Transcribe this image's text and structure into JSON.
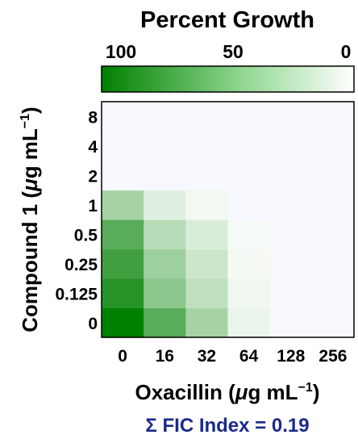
{
  "chart_data": {
    "type": "heatmap",
    "colorbar": {
      "title": "Percent Growth",
      "tick_labels": [
        "100",
        "50",
        "0"
      ],
      "tick_values": [
        100,
        50,
        0
      ],
      "colors": {
        "high": "#008000",
        "low": "#ffffff"
      }
    },
    "xlabel_prefix": "Oxacillin (",
    "xlabel_mu": "μ",
    "xlabel_units": "g mL",
    "xlabel_sup": "−1",
    "xlabel_suffix": ")",
    "ylabel_prefix": "Compound 1 (",
    "ylabel_mu": "μ",
    "ylabel_units": "g mL",
    "ylabel_sup": "−1",
    "ylabel_suffix": ")",
    "x_categories": [
      "0",
      "16",
      "32",
      "64",
      "128",
      "256"
    ],
    "y_categories": [
      "0",
      "0.125",
      "0.25",
      "0.5",
      "1",
      "2",
      "4",
      "8"
    ],
    "values": [
      [
        100,
        65,
        35,
        8,
        0,
        0
      ],
      [
        85,
        45,
        25,
        6,
        0,
        0
      ],
      [
        75,
        38,
        20,
        4,
        0,
        0
      ],
      [
        65,
        28,
        15,
        3,
        0,
        0
      ],
      [
        35,
        12,
        5,
        0,
        0,
        0
      ],
      [
        0,
        0,
        0,
        0,
        0,
        0
      ],
      [
        0,
        0,
        0,
        0,
        0,
        0
      ],
      [
        0,
        0,
        0,
        0,
        0,
        0
      ]
    ],
    "fic_label": "Σ FIC Index = 0.19",
    "fic_color": "#1a2a8a"
  }
}
